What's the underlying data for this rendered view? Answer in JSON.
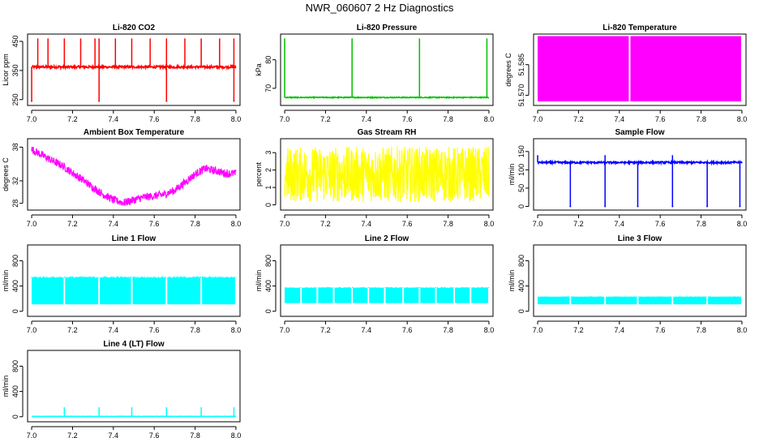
{
  "figure": {
    "title": "NWR_060607  2 Hz Diagnostics"
  },
  "chart_data": [
    {
      "type": "line",
      "title": "Li-820 CO2",
      "xlabel": "",
      "ylabel": "Licor ppm",
      "xlim": [
        6.98,
        8.02
      ],
      "ylim": [
        230,
        475
      ],
      "xticks": [
        "7.0",
        "7.2",
        "7.4",
        "7.6",
        "7.8",
        "8.0"
      ],
      "yticks": [
        "250",
        "350",
        "450"
      ],
      "color": "#ff0000",
      "pattern": "baseline_with_spikes",
      "series": [
        {
          "name": "CO2",
          "baseline": 362,
          "noise": 4,
          "spike_up": 460,
          "spike_down": 245,
          "spikes_up_x": [
            7.03,
            7.08,
            7.16,
            7.24,
            7.31,
            7.33,
            7.41,
            7.49,
            7.58,
            7.66,
            7.75,
            7.83,
            7.92,
            7.99
          ],
          "spikes_down_x": [
            7.0,
            7.33,
            7.66,
            7.99
          ]
        }
      ]
    },
    {
      "type": "line",
      "title": "Li-820 Pressure",
      "xlabel": "",
      "ylabel": "kPa",
      "xlim": [
        6.98,
        8.02
      ],
      "ylim": [
        64,
        89
      ],
      "xticks": [
        "7.0",
        "7.2",
        "7.4",
        "7.6",
        "7.8",
        "8.0"
      ],
      "yticks": [
        "70",
        "80"
      ],
      "color": "#00c000",
      "pattern": "baseline_with_spikes",
      "series": [
        {
          "name": "Pressure",
          "baseline": 66.8,
          "noise": 0.15,
          "spike_up": 87.5,
          "spikes_up_x": [
            7.0,
            7.33,
            7.66,
            7.99
          ],
          "spikes_down_x": []
        }
      ]
    },
    {
      "type": "area",
      "title": "Li-820 Temperature",
      "xlabel": "",
      "ylabel": "degrees C",
      "xlim": [
        6.98,
        8.02
      ],
      "ylim": [
        51.565,
        51.6
      ],
      "xticks": [
        "7.0",
        "7.2",
        "7.4",
        "7.6",
        "7.8",
        "8.0"
      ],
      "yticks": [
        "51.570",
        "51.585"
      ],
      "color": "#ff00ff",
      "pattern": "band",
      "series": [
        {
          "name": "Temperature",
          "low": 51.567,
          "high": 51.599,
          "gaps_x": [
            7.45
          ]
        }
      ]
    },
    {
      "type": "line",
      "title": "Ambient Box Temperature",
      "xlabel": "",
      "ylabel": "degrees C",
      "xlim": [
        6.98,
        8.02
      ],
      "ylim": [
        26.8,
        39.5
      ],
      "xticks": [
        "7.0",
        "7.2",
        "7.4",
        "7.6",
        "7.8",
        "8.0"
      ],
      "yticks": [
        "28",
        "32",
        "38"
      ],
      "color": "#ff00ff",
      "pattern": "noisy_curve",
      "series": [
        {
          "name": "Ambient",
          "x": [
            7.0,
            7.05,
            7.1,
            7.15,
            7.2,
            7.25,
            7.3,
            7.35,
            7.4,
            7.45,
            7.5,
            7.55,
            7.6,
            7.65,
            7.7,
            7.75,
            7.8,
            7.85,
            7.9,
            7.95,
            8.0
          ],
          "y": [
            37.6,
            36.6,
            35.6,
            34.7,
            33.4,
            32.2,
            30.8,
            29.6,
            28.6,
            28.1,
            28.6,
            29.1,
            29.3,
            29.6,
            30.3,
            31.7,
            33.2,
            34.2,
            33.8,
            33.3,
            33.3
          ],
          "noise": 0.7
        }
      ]
    },
    {
      "type": "area",
      "title": "Gas Stream RH",
      "xlabel": "",
      "ylabel": "percent",
      "xlim": [
        6.98,
        8.02
      ],
      "ylim": [
        -0.3,
        3.8
      ],
      "xticks": [
        "7.0",
        "7.2",
        "7.4",
        "7.6",
        "7.8",
        "8.0"
      ],
      "yticks": [
        "0",
        "1",
        "2",
        "3"
      ],
      "color": "#ffff00",
      "pattern": "noise_band",
      "series": [
        {
          "name": "RH",
          "low": 0.0,
          "high": 3.4,
          "center": 1.8
        }
      ]
    },
    {
      "type": "line",
      "title": "Sample Flow",
      "xlabel": "",
      "ylabel": "ml/min",
      "xlim": [
        6.98,
        8.02
      ],
      "ylim": [
        -10,
        185
      ],
      "xticks": [
        "7.0",
        "7.2",
        "7.4",
        "7.6",
        "7.8",
        "8.0"
      ],
      "yticks": [
        "0",
        "50",
        "100",
        "150"
      ],
      "color": "#0000ff",
      "pattern": "baseline_with_spikes",
      "series": [
        {
          "name": "Sample Flow",
          "baseline": 120,
          "noise": 2.5,
          "spike_up": 140,
          "spike_down": 0,
          "spikes_up_x": [
            7.0,
            7.33,
            7.66
          ],
          "spikes_down_x": [
            7.16,
            7.33,
            7.49,
            7.66,
            7.83,
            7.99
          ]
        }
      ]
    },
    {
      "type": "area",
      "title": "Line 1 Flow",
      "xlabel": "",
      "ylabel": "ml/min",
      "xlim": [
        6.98,
        8.02
      ],
      "ylim": [
        -80,
        1050
      ],
      "xticks": [
        "7.0",
        "7.2",
        "7.4",
        "7.6",
        "7.8",
        "8.0"
      ],
      "yticks": [
        "0",
        "400",
        "800"
      ],
      "color": "#00ffff",
      "pattern": "block_band",
      "series": [
        {
          "name": "Line 1 Flow",
          "low": 110,
          "high": 530,
          "gaps_x": [
            7.16,
            7.33,
            7.49,
            7.66,
            7.83
          ]
        }
      ]
    },
    {
      "type": "area",
      "title": "Line 2 Flow",
      "xlabel": "",
      "ylabel": "ml/min",
      "xlim": [
        6.98,
        8.02
      ],
      "ylim": [
        -80,
        1050
      ],
      "xticks": [
        "7.0",
        "7.2",
        "7.4",
        "7.6",
        "7.8",
        "8.0"
      ],
      "yticks": [
        "0",
        "400",
        "800"
      ],
      "color": "#00ffff",
      "pattern": "block_band",
      "series": [
        {
          "name": "Line 2 Flow",
          "low": 130,
          "high": 370,
          "gaps_x": [
            7.08,
            7.16,
            7.24,
            7.33,
            7.41,
            7.49,
            7.58,
            7.66,
            7.74,
            7.83,
            7.91
          ]
        }
      ]
    },
    {
      "type": "area",
      "title": "Line 3 Flow",
      "xlabel": "",
      "ylabel": "ml/min",
      "xlim": [
        6.98,
        8.02
      ],
      "ylim": [
        -80,
        1050
      ],
      "xticks": [
        "7.0",
        "7.2",
        "7.4",
        "7.6",
        "7.8",
        "8.0"
      ],
      "yticks": [
        "0",
        "400",
        "800"
      ],
      "color": "#00ffff",
      "pattern": "block_band",
      "series": [
        {
          "name": "Line 3 Flow",
          "low": 110,
          "high": 230,
          "gaps_x": [
            7.16,
            7.33,
            7.49,
            7.66,
            7.83
          ]
        }
      ]
    },
    {
      "type": "line",
      "title": "Line 4 (LT) Flow",
      "xlabel": "",
      "ylabel": "ml/min",
      "xlim": [
        6.98,
        8.02
      ],
      "ylim": [
        -80,
        1050
      ],
      "xticks": [
        "7.0",
        "7.2",
        "7.4",
        "7.6",
        "7.8",
        "8.0"
      ],
      "yticks": [
        "0",
        "400",
        "800"
      ],
      "color": "#00ffff",
      "pattern": "baseline_with_spikes",
      "series": [
        {
          "name": "Line 4 Flow",
          "baseline": 5,
          "noise": 2,
          "spike_up": 150,
          "spikes_up_x": [
            7.16,
            7.33,
            7.49,
            7.66,
            7.83,
            7.99
          ],
          "spikes_down_x": []
        }
      ]
    }
  ]
}
